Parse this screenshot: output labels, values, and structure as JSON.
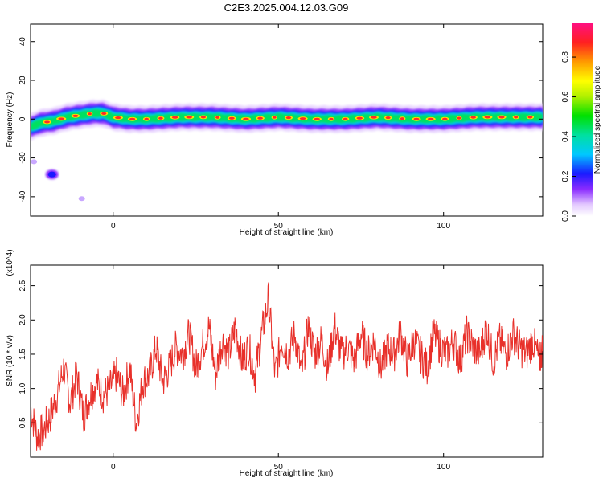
{
  "figure_title": "C2E3.2025.004.12.03.G09",
  "chart_data": [
    {
      "type": "heatmap",
      "xlabel": "Height of straight line (km)",
      "ylabel": "Frequency (Hz)",
      "xlim": [
        -25,
        130
      ],
      "ylim": [
        -50,
        49
      ],
      "xticks": [
        0,
        50,
        100
      ],
      "yticks": [
        -40,
        -20,
        0,
        20,
        40
      ],
      "colorbar": {
        "label": "Normalized spectral amplitude",
        "range": [
          0.0,
          0.97
        ],
        "ticks": [
          0.0,
          0.2,
          0.4,
          0.6,
          0.8
        ]
      },
      "band": {
        "description_center_hz": [
          [
            -25,
            -4
          ],
          [
            -22,
            -2
          ],
          [
            -18,
            -1
          ],
          [
            -14,
            1
          ],
          [
            -10,
            2
          ],
          [
            -6,
            3
          ],
          [
            -3,
            3
          ],
          [
            0,
            1
          ],
          [
            5,
            0
          ],
          [
            10,
            0
          ],
          [
            20,
            1
          ],
          [
            30,
            1
          ],
          [
            40,
            0
          ],
          [
            50,
            1
          ],
          [
            60,
            0
          ],
          [
            70,
            0
          ],
          [
            80,
            1
          ],
          [
            90,
            0
          ],
          [
            100,
            0
          ],
          [
            110,
            1
          ],
          [
            120,
            1
          ],
          [
            130,
            1
          ]
        ],
        "half_width_hz": 3.5
      },
      "blobs": [
        {
          "x": -18.5,
          "y": -28.5,
          "amp": 0.25
        },
        {
          "x": -9.5,
          "y": -41,
          "amp": 0.08
        },
        {
          "x": -24,
          "y": -22,
          "amp": 0.05
        }
      ]
    },
    {
      "type": "line",
      "xlabel": "Height of straight line (km)",
      "ylabel": "SNR (10 * v/v)",
      "y_multiplier": "(x10^4)",
      "xlim": [
        -25,
        130
      ],
      "ylim": [
        0,
        2.8
      ],
      "xticks": [
        0,
        50,
        100
      ],
      "yticks": [
        0.5,
        1.0,
        1.5,
        2.0,
        2.5
      ],
      "ytick_labels": [
        "0.5",
        "1.0",
        "1.5",
        "2.0",
        "2.5"
      ],
      "color": "#e8302a",
      "series": [
        {
          "x": [
            -25,
            -23,
            -21,
            -19,
            -17,
            -15,
            -13,
            -11,
            -9,
            -7,
            -5,
            -3,
            -1,
            1,
            3,
            5,
            7,
            9,
            11,
            13,
            15,
            17,
            19,
            21,
            23,
            25,
            27,
            29,
            31,
            33,
            35,
            37,
            39,
            41,
            43,
            45,
            47,
            49,
            51,
            53,
            55,
            57,
            59,
            61,
            63,
            65,
            67,
            69,
            71,
            73,
            75,
            77,
            79,
            81,
            83,
            85,
            87,
            89,
            91,
            93,
            95,
            97,
            99,
            101,
            103,
            105,
            107,
            109,
            111,
            113,
            115,
            117,
            119,
            121,
            123,
            125,
            127,
            129,
            130
          ],
          "values": [
            0.7,
            0.3,
            0.4,
            0.6,
            0.9,
            1.3,
            0.8,
            1.2,
            0.6,
            0.9,
            1.1,
            0.9,
            1.0,
            1.2,
            0.9,
            1.3,
            0.5,
            1.1,
            1.2,
            1.6,
            1.1,
            1.3,
            1.6,
            1.5,
            1.8,
            1.3,
            1.6,
            1.9,
            1.2,
            1.7,
            1.5,
            1.9,
            1.4,
            1.6,
            1.2,
            1.8,
            2.3,
            1.2,
            1.7,
            1.5,
            1.8,
            1.2,
            1.9,
            1.5,
            1.7,
            1.3,
            1.9,
            1.5,
            1.6,
            1.4,
            1.8,
            1.5,
            1.7,
            1.3,
            1.6,
            1.5,
            1.8,
            1.4,
            1.7,
            1.5,
            1.3,
            1.8,
            1.6,
            1.5,
            1.7,
            1.4,
            1.8,
            1.6,
            1.5,
            1.9,
            1.4,
            1.7,
            1.5,
            1.8,
            1.6,
            1.5,
            1.7,
            1.4,
            1.6
          ]
        }
      ]
    }
  ]
}
